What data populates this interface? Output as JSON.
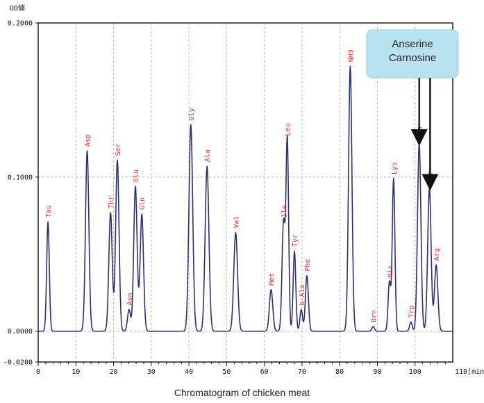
{
  "chart_data": {
    "type": "line",
    "title": "",
    "y_unit_label": "OD値",
    "x_unit_label": "110[min]",
    "caption": "Chromatogram of chicken meat",
    "xlim": [
      0,
      110
    ],
    "ylim": [
      -0.02,
      0.2
    ],
    "x_ticks": [
      0,
      10,
      20,
      30,
      40,
      50,
      60,
      70,
      80,
      90,
      100
    ],
    "x_tick_labels": [
      "0",
      "10",
      "20",
      "30",
      "40",
      "50",
      "60",
      "70",
      "80",
      "90",
      "100"
    ],
    "y_ticks": [
      -0.02,
      0,
      0.1,
      0.2
    ],
    "y_tick_labels": [
      "-0.0200",
      "0.0000",
      "0.1000",
      "0.2000"
    ],
    "grid": true,
    "colors": {
      "line": "#2d2f72",
      "peak_label": "#ff2a2a",
      "callout_fill": "#b8e2ef",
      "callout_border": "#8fd0e4",
      "arrow": "#111111",
      "axis": "#111111",
      "grid": "#b8b8b8"
    },
    "peaks": [
      {
        "label": "Tau",
        "x": 2.6,
        "y": 0.071,
        "width": 0.35
      },
      {
        "label": "Asp",
        "x": 13.0,
        "y": 0.117,
        "width": 0.45
      },
      {
        "label": "Thr",
        "x": 19.2,
        "y": 0.077,
        "width": 0.45
      },
      {
        "label": "Ser",
        "x": 21.0,
        "y": 0.111,
        "width": 0.45
      },
      {
        "label": "Asn",
        "x": 24.1,
        "y": 0.014,
        "width": 0.4
      },
      {
        "label": "Glu",
        "x": 25.8,
        "y": 0.094,
        "width": 0.45
      },
      {
        "label": "Gln",
        "x": 27.5,
        "y": 0.076,
        "width": 0.45
      },
      {
        "label": "Gly",
        "x": 40.5,
        "y": 0.134,
        "width": 0.5
      },
      {
        "label": "Ala",
        "x": 44.8,
        "y": 0.107,
        "width": 0.5
      },
      {
        "label": "Val",
        "x": 52.4,
        "y": 0.064,
        "width": 0.5
      },
      {
        "label": "Met",
        "x": 61.8,
        "y": 0.027,
        "width": 0.45
      },
      {
        "label": "Ile",
        "x": 65.1,
        "y": 0.071,
        "width": 0.4
      },
      {
        "label": "Leu",
        "x": 66.1,
        "y": 0.124,
        "width": 0.35
      },
      {
        "label": "Tyr",
        "x": 68.0,
        "y": 0.052,
        "width": 0.35
      },
      {
        "label": "b-Ala",
        "x": 69.8,
        "y": 0.014,
        "width": 0.35
      },
      {
        "label": "Phe",
        "x": 71.3,
        "y": 0.036,
        "width": 0.4
      },
      {
        "label": "NH3",
        "x": 82.8,
        "y": 0.172,
        "width": 0.45
      },
      {
        "label": "Orn",
        "x": 88.9,
        "y": 0.003,
        "width": 0.35
      },
      {
        "label": "His",
        "x": 93.2,
        "y": 0.032,
        "width": 0.35
      },
      {
        "label": "Lys",
        "x": 94.3,
        "y": 0.099,
        "width": 0.35
      },
      {
        "label": "Trp",
        "x": 98.9,
        "y": 0.006,
        "width": 0.35
      },
      {
        "label": "Ans",
        "x": 101.1,
        "y": 0.122,
        "width": 0.45
      },
      {
        "label": "Car",
        "x": 103.8,
        "y": 0.093,
        "width": 0.45
      },
      {
        "label": "Arg",
        "x": 105.6,
        "y": 0.043,
        "width": 0.45
      }
    ],
    "callout": {
      "lines": [
        "Anserine",
        "Carnosine"
      ],
      "targets": [
        "Ans",
        "Car"
      ]
    }
  }
}
